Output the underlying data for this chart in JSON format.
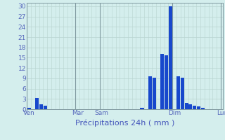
{
  "xlabel": "Précipitations 24h ( mm )",
  "ylim": [
    0,
    31
  ],
  "yticks": [
    0,
    3,
    6,
    9,
    12,
    15,
    18,
    21,
    24,
    27,
    30
  ],
  "background_color": "#d4eeed",
  "bar_color": "#1848cc",
  "grid_color": "#b8d4d0",
  "vline_color": "#8099a0",
  "axis_label_color": "#3344aa",
  "tick_label_color": "#5566bb",
  "bar_values": [
    0.5,
    0,
    3.2,
    1.5,
    1.0,
    0,
    0,
    0,
    0,
    0,
    0,
    0,
    0,
    0,
    0,
    0,
    0,
    0,
    0,
    0,
    0,
    0,
    0,
    0,
    0,
    0,
    0,
    0,
    0.5,
    0,
    9.5,
    9.2,
    0,
    16.2,
    15.8,
    30.0,
    0,
    9.5,
    9.2,
    1.8,
    1.5,
    1.0,
    0.8,
    0.5,
    0,
    0,
    0,
    0
  ],
  "n_bars": 48,
  "day_labels": [
    "Ven",
    "Mar",
    "Sam",
    "Dim",
    "Lun"
  ],
  "day_tick_positions": [
    0,
    12,
    18,
    36,
    48
  ],
  "vline_positions": [
    0,
    12,
    18,
    36,
    48
  ],
  "bar_width": 0.9,
  "xlabel_fontsize": 8,
  "tick_fontsize": 6.5,
  "xlabel_color": "#4455bb"
}
